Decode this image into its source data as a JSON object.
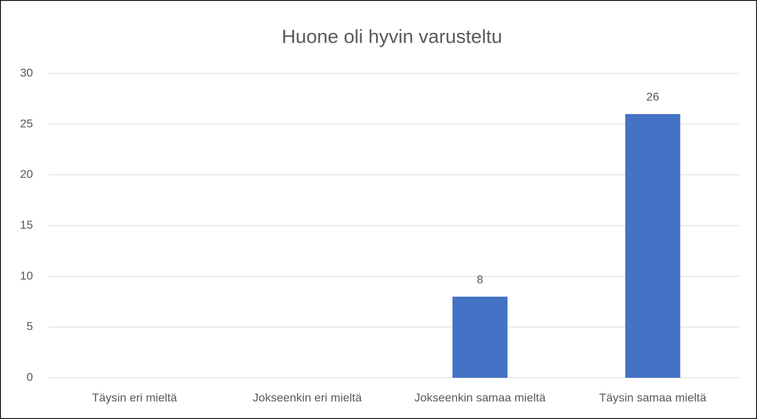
{
  "chart_data": {
    "type": "bar",
    "title": "Huone oli hyvin varusteltu",
    "categories": [
      "Täysin eri mieltä",
      "Jokseenkin eri mieltä",
      "Jokseenkin samaa mieltä",
      "Täysin samaa mieltä"
    ],
    "values": [
      null,
      null,
      8,
      26
    ],
    "color": "#4472c4",
    "ylim": [
      0,
      30
    ],
    "yticks": [
      0,
      5,
      10,
      15,
      20,
      25,
      30
    ],
    "grid": true,
    "data_labels": true
  }
}
